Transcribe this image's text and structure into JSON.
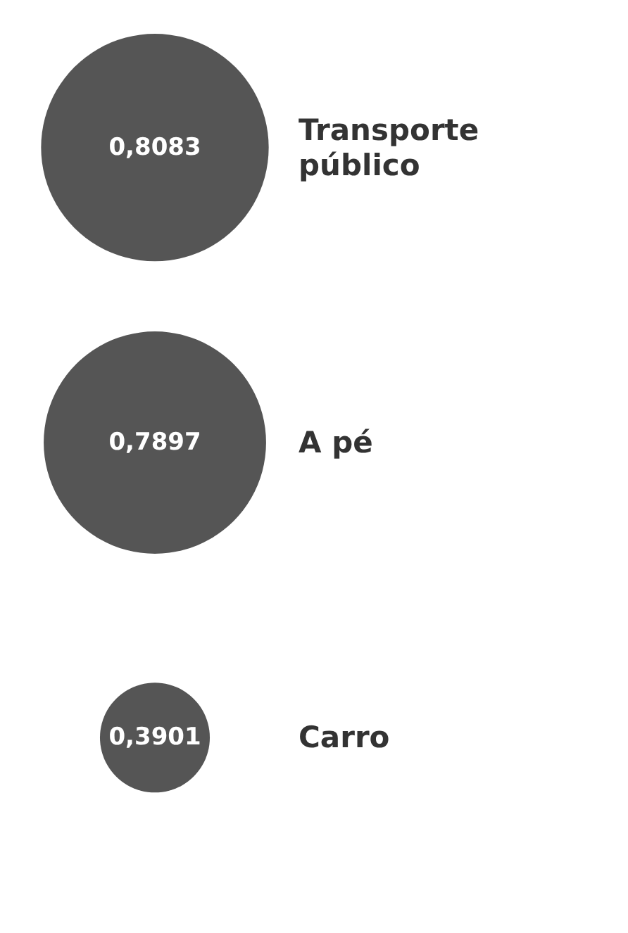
{
  "chart_data": {
    "type": "other",
    "categories": [
      "Transporte público",
      "A pé",
      "Carro"
    ],
    "values": [
      0.8083,
      0.7897,
      0.3901
    ],
    "value_labels": [
      "0,8083",
      "0,7897",
      "0,3901"
    ],
    "color": "#555555"
  }
}
